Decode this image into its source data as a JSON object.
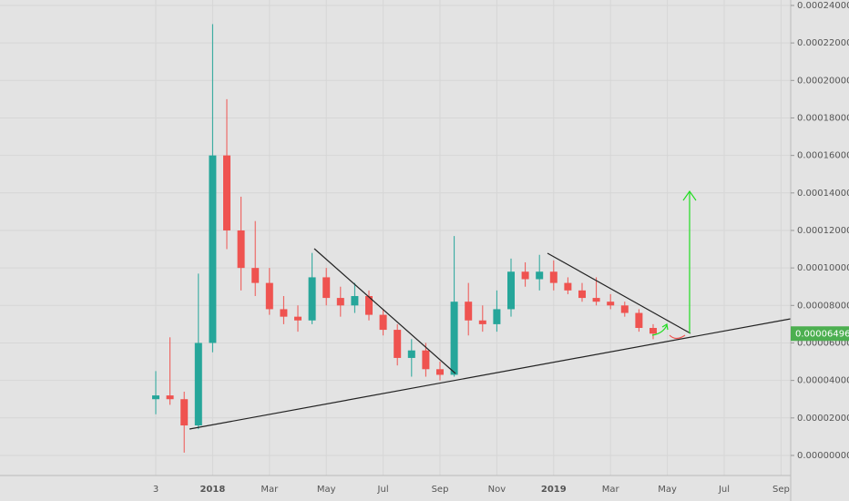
{
  "chart_data": {
    "type": "candlestick",
    "categories": [
      "3",
      null,
      null,
      null,
      "2018",
      null,
      null,
      null,
      "Mar",
      null,
      null,
      null,
      "May",
      null,
      null,
      null,
      "Jul",
      null,
      null,
      null,
      "Sep",
      null,
      null,
      null,
      "Nov",
      null,
      null,
      null,
      "2019",
      null,
      null,
      null,
      "Mar",
      null,
      null,
      null,
      "May",
      null,
      null,
      null,
      "Jul",
      null,
      null,
      null,
      "Sep"
    ],
    "open": [
      3e-05,
      3.2e-05,
      3e-05,
      1.6e-05,
      6e-05,
      0.00016,
      0.00012,
      0.0001,
      9.2e-05,
      7.8e-05,
      7.4e-05,
      7.2e-05,
      9.5e-05,
      8.4e-05,
      8e-05,
      8.5e-05,
      7.5e-05,
      6.7e-05,
      5.2e-05,
      5.6e-05,
      4.6e-05,
      4.3e-05,
      8.2e-05,
      7.2e-05,
      7e-05,
      7.8e-05,
      9.8e-05,
      9.4e-05,
      9.8e-05,
      9.2e-05,
      8.8e-05,
      8.4e-05,
      8.2e-05,
      8e-05,
      7.6e-05,
      6.8e-05,
      null,
      null,
      null,
      null,
      null,
      null,
      null,
      null,
      null
    ],
    "high": [
      4.5e-05,
      6.3e-05,
      3.4e-05,
      9.7e-05,
      0.00023,
      0.00019,
      0.000138,
      0.000125,
      0.0001,
      8.5e-05,
      8e-05,
      0.000108,
      0.0001,
      9e-05,
      9.2e-05,
      8.8e-05,
      7.8e-05,
      7e-05,
      6.2e-05,
      6e-05,
      5e-05,
      0.000117,
      9.2e-05,
      8e-05,
      8.8e-05,
      0.000105,
      0.000103,
      0.000107,
      0.000104,
      9.5e-05,
      9.2e-05,
      9.5e-05,
      8.6e-05,
      8.2e-05,
      7.8e-05,
      7e-05,
      null,
      null,
      null,
      null,
      null,
      null,
      null,
      null,
      null
    ],
    "low": [
      2.2e-05,
      2.7e-05,
      1.5e-06,
      1.4e-05,
      5.5e-05,
      0.00011,
      8.8e-05,
      8.5e-05,
      7.5e-05,
      7e-05,
      6.6e-05,
      7e-05,
      8e-05,
      7.4e-05,
      7.6e-05,
      7.2e-05,
      6.4e-05,
      4.8e-05,
      4.2e-05,
      4.2e-05,
      4e-05,
      4.2e-05,
      6.4e-05,
      6.6e-05,
      6.6e-05,
      7.4e-05,
      9e-05,
      8.8e-05,
      8.8e-05,
      8.6e-05,
      8.2e-05,
      8e-05,
      7.8e-05,
      7.4e-05,
      6.6e-05,
      6.2e-05,
      null,
      null,
      null,
      null,
      null,
      null,
      null,
      null,
      null
    ],
    "close": [
      3.2e-05,
      3e-05,
      1.6e-05,
      6e-05,
      0.00016,
      0.00012,
      0.0001,
      9.2e-05,
      7.8e-05,
      7.4e-05,
      7.2e-05,
      9.5e-05,
      8.4e-05,
      8e-05,
      8.5e-05,
      7.5e-05,
      6.7e-05,
      5.2e-05,
      5.6e-05,
      4.6e-05,
      4.3e-05,
      8.2e-05,
      7.2e-05,
      7e-05,
      7.8e-05,
      9.8e-05,
      9.4e-05,
      9.8e-05,
      9.2e-05,
      8.8e-05,
      8.4e-05,
      8.2e-05,
      8e-05,
      7.6e-05,
      6.8e-05,
      6.496e-05,
      null,
      null,
      null,
      null,
      null,
      null,
      null,
      null,
      null
    ],
    "up_color": "#26a69a",
    "down_color": "#ef5350",
    "ylim": [
      -1.07e-05,
      0.0002429
    ],
    "yticks": [
      {
        "value": 0,
        "label": "0.00000000"
      },
      {
        "value": 2e-05,
        "label": "0.00002000"
      },
      {
        "value": 4e-05,
        "label": "0.00004000"
      },
      {
        "value": 6e-05,
        "label": "0.00006000"
      },
      {
        "value": 8e-05,
        "label": "0.00008000"
      },
      {
        "value": 0.0001,
        "label": "0.00010000"
      },
      {
        "value": 0.00012,
        "label": "0.00012000"
      },
      {
        "value": 0.00014,
        "label": "0.00014000"
      },
      {
        "value": 0.00016,
        "label": "0.00016000"
      },
      {
        "value": 0.00018,
        "label": "0.00018000"
      },
      {
        "value": 0.0002,
        "label": "0.00020000"
      },
      {
        "value": 0.00022,
        "label": "0.00022000"
      },
      {
        "value": 0.00024,
        "label": "0.00024000"
      }
    ],
    "last_price": 6.496e-05,
    "last_price_color": "#4caf50",
    "grid": true
  }
}
